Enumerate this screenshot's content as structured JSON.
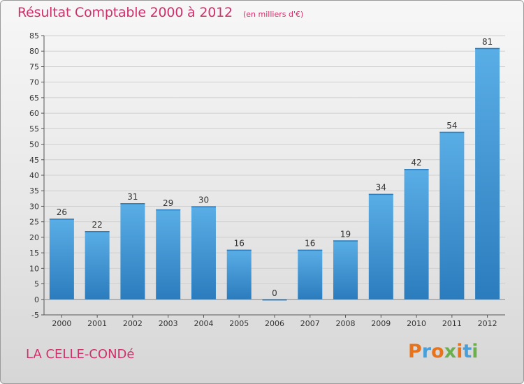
{
  "header": {
    "title": "Résultat Comptable 2000 à 2012",
    "subtitle": "(en milliers d'€)"
  },
  "footer": {
    "place": "LA CELLE-CONDé",
    "brand": "Proxiti"
  },
  "colors": {
    "title": "#d0306a",
    "bar_light": "#5aaee6",
    "bar_dark": "#2b7cbd",
    "brand_letters": [
      "#e8731a",
      "#4a9fd8",
      "#e8731a",
      "#6ab04c",
      "#e8731a",
      "#4a9fd8",
      "#6ab04c"
    ]
  },
  "chart_data": {
    "type": "bar",
    "title": "Résultat Comptable 2000 à 2012",
    "subtitle": "(en milliers d'€)",
    "categories": [
      "2000",
      "2001",
      "2002",
      "2003",
      "2004",
      "2005",
      "2006",
      "2007",
      "2008",
      "2009",
      "2010",
      "2011",
      "2012"
    ],
    "values": [
      26,
      22,
      31,
      29,
      30,
      16,
      0,
      16,
      19,
      34,
      42,
      54,
      81
    ],
    "ylim": [
      -5,
      85
    ],
    "yticks": [
      -5,
      0,
      5,
      10,
      15,
      20,
      25,
      30,
      35,
      40,
      45,
      50,
      55,
      60,
      65,
      70,
      75,
      80,
      85
    ],
    "grid": "horizontal",
    "data_labels": true
  }
}
